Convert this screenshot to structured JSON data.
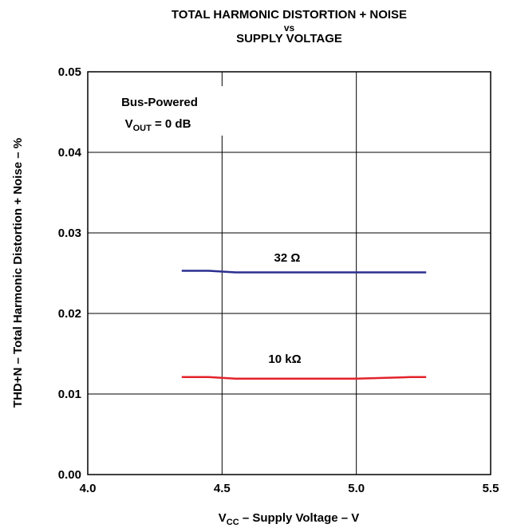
{
  "chart_data": {
    "type": "line",
    "title_lines": [
      "TOTAL HARMONIC DISTORTION + NOISE",
      "vs",
      "SUPPLY VOLTAGE"
    ],
    "xlabel": {
      "main": "V",
      "sub": "CC",
      "rest": " – Supply Voltage – V"
    },
    "ylabel": "THD+N – Total Harmonic Distortion + Noise – %",
    "xlim": [
      4.0,
      5.5
    ],
    "ylim": [
      0.0,
      0.05
    ],
    "x_ticks": [
      "4.0",
      "4.5",
      "5.0",
      "5.5"
    ],
    "y_ticks": [
      "0.00",
      "0.01",
      "0.02",
      "0.03",
      "0.04",
      "0.05"
    ],
    "grid": true,
    "annotation": {
      "line1": "Bus-Powered",
      "line2_main": "V",
      "line2_sub": "OUT",
      "line2_rest": " = 0 dB"
    },
    "series": [
      {
        "name": "32 Ω",
        "color": "#2b2f8f",
        "x": [
          4.35,
          4.45,
          4.5,
          4.55,
          4.6,
          4.8,
          5.0,
          5.2,
          5.26
        ],
        "y": [
          0.0253,
          0.0253,
          0.0252,
          0.0251,
          0.0251,
          0.0251,
          0.0251,
          0.0251,
          0.0251
        ]
      },
      {
        "name": "10 kΩ",
        "color": "#e3222b",
        "x": [
          4.35,
          4.45,
          4.5,
          4.55,
          4.6,
          4.8,
          5.0,
          5.2,
          5.26
        ],
        "y": [
          0.0121,
          0.0121,
          0.012,
          0.0119,
          0.0119,
          0.0119,
          0.0119,
          0.0121,
          0.0121
        ]
      }
    ]
  }
}
